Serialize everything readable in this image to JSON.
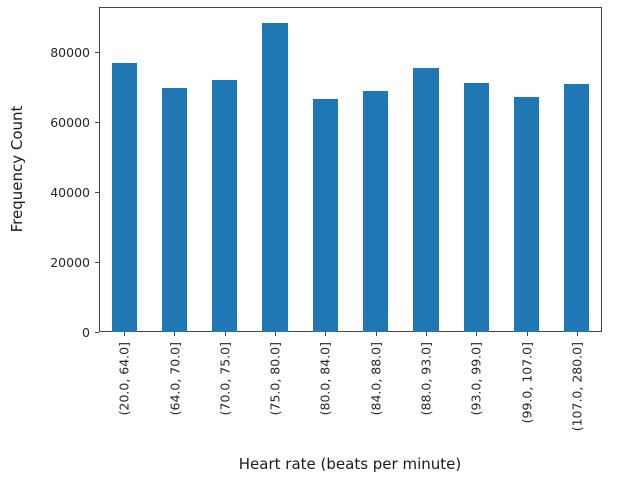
{
  "chart_data": {
    "type": "bar",
    "title": "",
    "xlabel": "Heart rate (beats per minute)",
    "ylabel": "Frequency Count",
    "categories": [
      "(20.0, 64.0]",
      "(64.0, 70.0]",
      "(70.0, 75.0]",
      "(75.0, 80.0]",
      "(80.0, 84.0]",
      "(84.0, 88.0]",
      "(88.0, 93.0]",
      "(93.0, 99.0]",
      "(99.0, 107.0]",
      "(107.0, 280.0]"
    ],
    "values": [
      76900,
      69700,
      72000,
      88400,
      66600,
      68900,
      75500,
      71200,
      67200,
      70900
    ],
    "yticks": [
      0,
      20000,
      40000,
      60000,
      80000
    ],
    "ylim": [
      0,
      93000
    ],
    "bar_color": "#1f77b4",
    "bar_rel_width": 0.5,
    "x_tick_rotation": 90,
    "grid": false,
    "legend_position": "none"
  }
}
